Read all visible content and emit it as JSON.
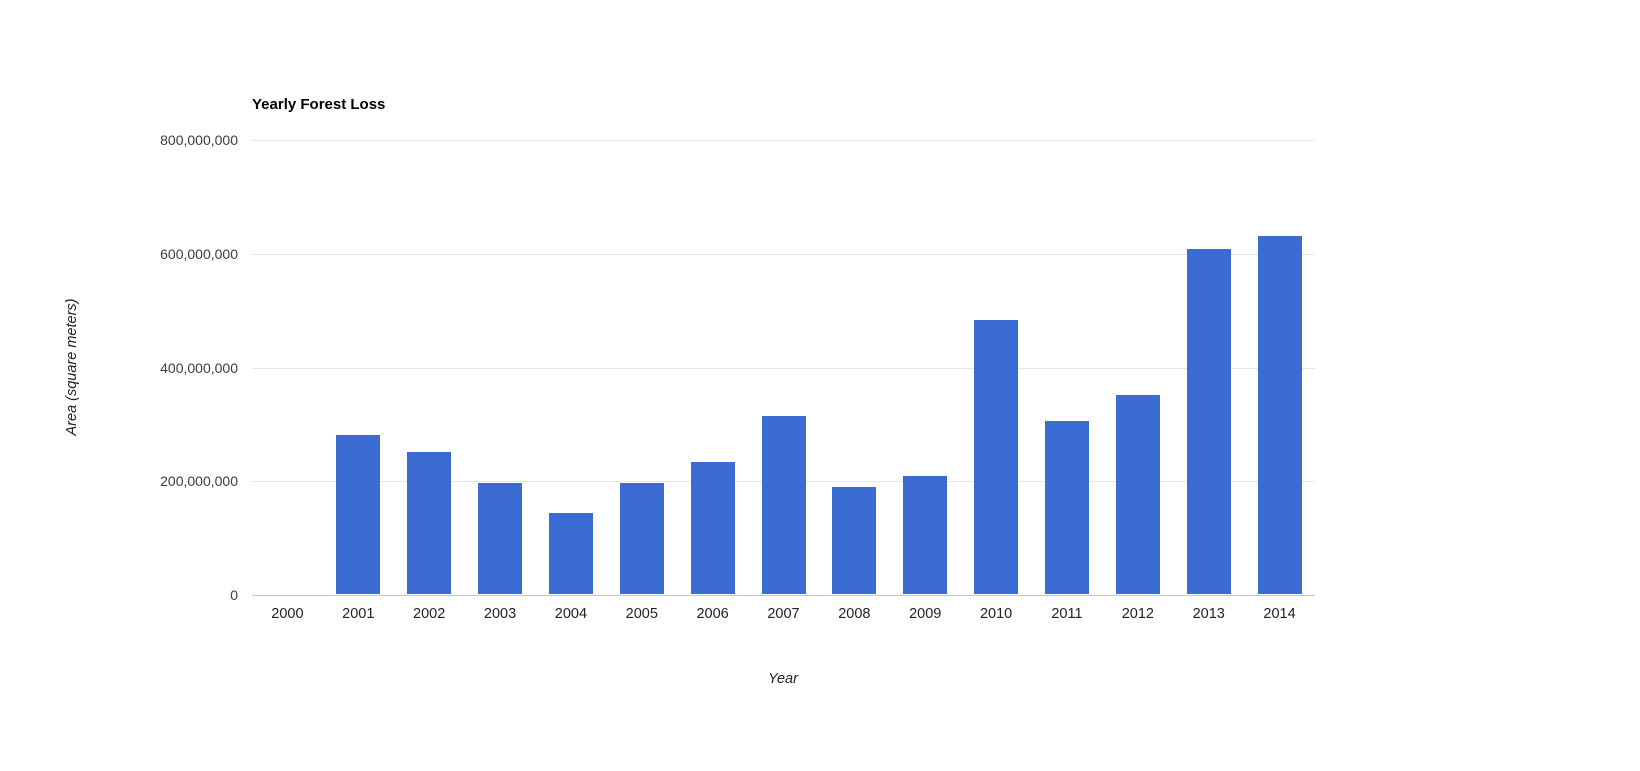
{
  "chart_data": {
    "type": "bar",
    "title": "Yearly Forest Loss",
    "xlabel": "Year",
    "ylabel": "Area (square meters)",
    "categories": [
      "2000",
      "2001",
      "2002",
      "2003",
      "2004",
      "2005",
      "2006",
      "2007",
      "2008",
      "2009",
      "2010",
      "2011",
      "2012",
      "2013",
      "2014"
    ],
    "values": [
      0,
      280000000,
      250000000,
      195000000,
      143000000,
      195000000,
      232000000,
      313000000,
      188000000,
      207000000,
      482000000,
      305000000,
      350000000,
      607000000,
      630000000
    ],
    "ylim": [
      0,
      800000000
    ],
    "yticks": [
      {
        "value": 0,
        "label": "0"
      },
      {
        "value": 200000000,
        "label": "200,000,000"
      },
      {
        "value": 400000000,
        "label": "400,000,000"
      },
      {
        "value": 600000000,
        "label": "600,000,000"
      },
      {
        "value": 800000000,
        "label": "800,000,000"
      }
    ],
    "bar_color": "#3b6cd4",
    "grid": true,
    "legend_position": "none"
  }
}
